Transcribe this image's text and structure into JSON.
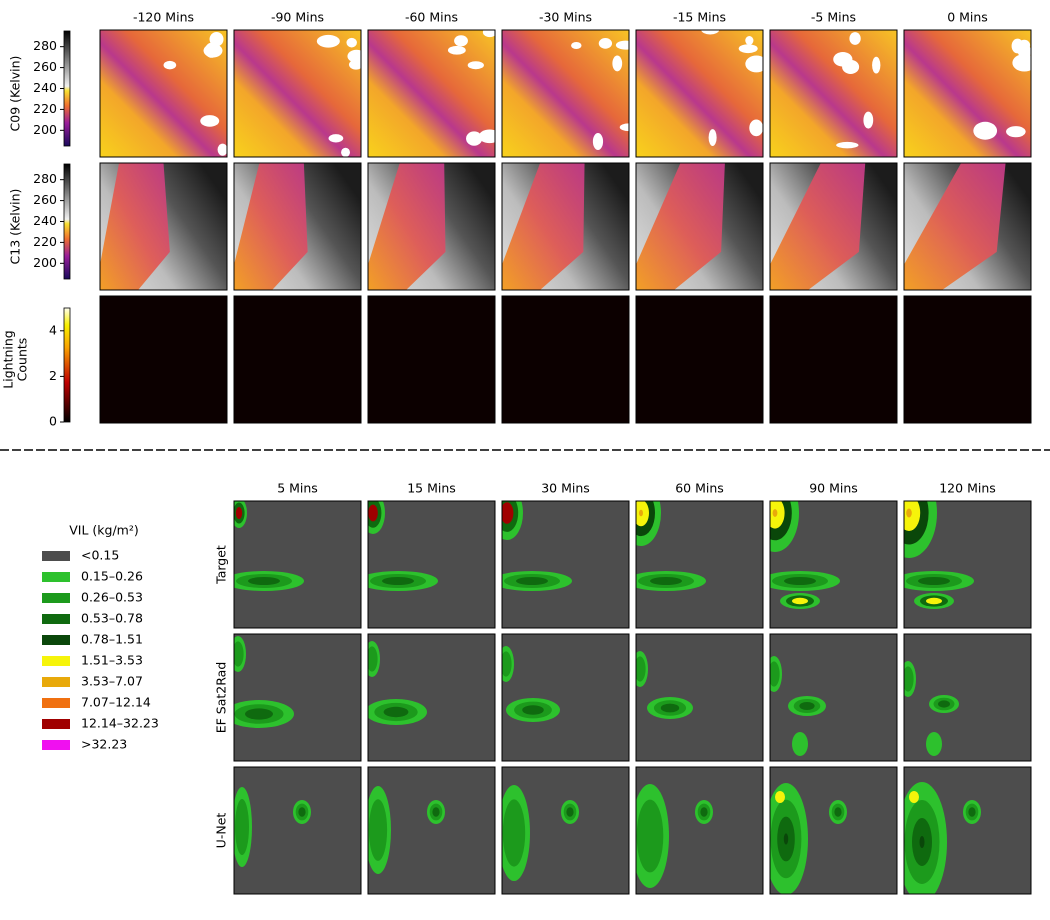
{
  "top": {
    "columns": [
      "-120 Mins",
      "-90 Mins",
      "-60 Mins",
      "-30 Mins",
      "-15 Mins",
      "-5 Mins",
      "0 Mins"
    ],
    "rows": [
      {
        "label": [
          "C09 (Kelvin)"
        ],
        "colorbar": {
          "range": [
            185,
            295
          ],
          "ticks": [
            200,
            220,
            240,
            260,
            280
          ]
        }
      },
      {
        "label": [
          "C13 (Kelvin)"
        ],
        "colorbar": {
          "range": [
            185,
            295
          ],
          "ticks": [
            200,
            220,
            240,
            260,
            280
          ]
        }
      },
      {
        "label": [
          "Lightning",
          "Counts"
        ],
        "colorbar": {
          "range": [
            0,
            5
          ],
          "ticks": [
            0,
            2,
            4
          ]
        }
      }
    ]
  },
  "bottom": {
    "columns": [
      "5 Mins",
      "15 Mins",
      "30 Mins",
      "60 Mins",
      "90 Mins",
      "120 Mins"
    ],
    "rows": [
      "Target",
      "EF Sat2Rad",
      "U-Net"
    ]
  },
  "legend": {
    "title": "VIL (kg/m²)",
    "items": [
      {
        "label": "<0.15",
        "color": "#4d4d4d"
      },
      {
        "label": "0.15–0.26",
        "color": "#2dc12d"
      },
      {
        "label": "0.26–0.53",
        "color": "#1c9a1c"
      },
      {
        "label": "0.53–0.78",
        "color": "#0f6a0f"
      },
      {
        "label": "0.78–1.51",
        "color": "#0a470a"
      },
      {
        "label": "1.51–3.53",
        "color": "#f6f40a"
      },
      {
        "label": "3.53–7.07",
        "color": "#e8a90a"
      },
      {
        "label": "7.07–12.14",
        "color": "#f07010"
      },
      {
        "label": "12.14–32.23",
        "color": "#a00000"
      },
      {
        "label": ">32.23",
        "color": "#f010f0"
      }
    ]
  }
}
